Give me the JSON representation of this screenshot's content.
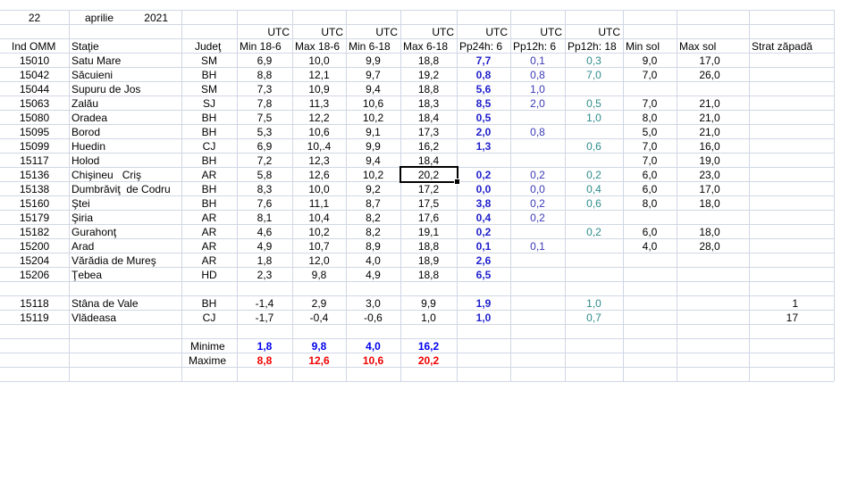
{
  "header": {
    "day": "22",
    "month": "aprilie",
    "year": "2021",
    "utc": [
      "UTC",
      "UTC",
      "UTC",
      "UTC",
      "UTC",
      "UTC",
      "UTC"
    ],
    "columns": [
      "Ind OMM",
      "Staţie",
      "Judeţ",
      "Min 18-6",
      "Max 18-6",
      "Min 6-18",
      "Max 6-18",
      "Pp24h: 6",
      "Pp12h: 6",
      "Pp12h: 18",
      "Min sol",
      "Max sol",
      "Strat zăpadă"
    ]
  },
  "table": {
    "rows": [
      [
        "15010",
        "Satu Mare",
        "SM",
        "6,9",
        "10,0",
        "9,9",
        "18,8",
        "7,7",
        "0,1",
        "0,3",
        "9,0",
        "17,0",
        null
      ],
      [
        "15042",
        "Săcuieni",
        "BH",
        "8,8",
        "12,1",
        "9,7",
        "19,2",
        "0,8",
        "0,8",
        "7,0",
        "7,0",
        "26,0",
        null
      ],
      [
        "15044",
        "Supuru de Jos",
        "SM",
        "7,3",
        "10,9",
        "9,4",
        "18,8",
        "5,6",
        "1,0",
        null,
        null,
        null,
        null
      ],
      [
        "15063",
        "Zalău",
        "SJ",
        "7,8",
        "11,3",
        "10,6",
        "18,3",
        "8,5",
        "2,0",
        "0,5",
        "7,0",
        "21,0",
        null
      ],
      [
        "15080",
        "Oradea",
        "BH",
        "7,5",
        "12,2",
        "10,2",
        "18,4",
        "0,5",
        null,
        "1,0",
        "8,0",
        "21,0",
        null
      ],
      [
        "15095",
        "Borod",
        "BH",
        "5,3",
        "10,6",
        "9,1",
        "17,3",
        "2,0",
        "0,8",
        null,
        "5,0",
        "21,0",
        null
      ],
      [
        "15099",
        "Huedin",
        "CJ",
        "6,9",
        "10,.4",
        "9,9",
        "16,2",
        "1,3",
        null,
        "0,6",
        "7,0",
        "16,0",
        null
      ],
      [
        "15117",
        "Holod",
        "BH",
        "7,2",
        "12,3",
        "9,4",
        "18,4",
        null,
        null,
        null,
        "7,0",
        "19,0",
        null
      ],
      [
        "15136",
        "Chişineu   Criş",
        "AR",
        "5,8",
        "12,6",
        "10,2",
        "20,2",
        "0,2",
        "0,2",
        "0,2",
        "6,0",
        "23,0",
        null
      ],
      [
        "15138",
        "Dumbrăviţ  de Codru",
        "BH",
        "8,3",
        "10,0",
        "9,2",
        "17,2",
        "0,0",
        "0,0",
        "0,4",
        "6,0",
        "17,0",
        null
      ],
      [
        "15160",
        "Ştei",
        "BH",
        "7,6",
        "11,1",
        "8,7",
        "17,5",
        "3,8",
        "0,2",
        "0,6",
        "8,0",
        "18,0",
        null
      ],
      [
        "15179",
        "Şiria",
        "AR",
        "8,1",
        "10,4",
        "8,2",
        "17,6",
        "0,4",
        "0,2",
        null,
        null,
        null,
        null
      ],
      [
        "15182",
        "Gurahonţ",
        "AR",
        "4,6",
        "10,2",
        "8,2",
        "19,1",
        "0,2",
        null,
        "0,2",
        "6,0",
        "18,0",
        null
      ],
      [
        "15200",
        "Arad",
        "AR",
        "4,9",
        "10,7",
        "8,9",
        "18,8",
        "0,1",
        "0,1",
        null,
        "4,0",
        "28,0",
        null
      ],
      [
        "15204",
        "Vărădia de Mureş",
        "AR",
        "1,8",
        "12,0",
        "4,0",
        "18,9",
        "2,6",
        null,
        null,
        null,
        null,
        null
      ],
      [
        "15206",
        "Ţebea",
        "HD",
        "2,3",
        "9,8",
        "4,9",
        "18,8",
        "6,5",
        null,
        null,
        null,
        null,
        null
      ]
    ],
    "mountain_rows": [
      [
        "15118",
        "Stâna de Vale",
        "BH",
        "-1,4",
        "2,9",
        "3,0",
        "9,9",
        "1,9",
        null,
        "1,0",
        null,
        null,
        "1"
      ],
      [
        "15119",
        "Vlădeasa",
        "CJ",
        "-1,7",
        "-0,4",
        "-0,6",
        "1,0",
        "1,0",
        null,
        "0,7",
        null,
        null,
        "17"
      ]
    ]
  },
  "summary": {
    "min_label": "Minime",
    "min": [
      "1,8",
      "9,8",
      "4,0",
      "16,2"
    ],
    "max_label": "Maxime",
    "max": [
      "8,8",
      "12,6",
      "10,6",
      "20,2"
    ]
  }
}
